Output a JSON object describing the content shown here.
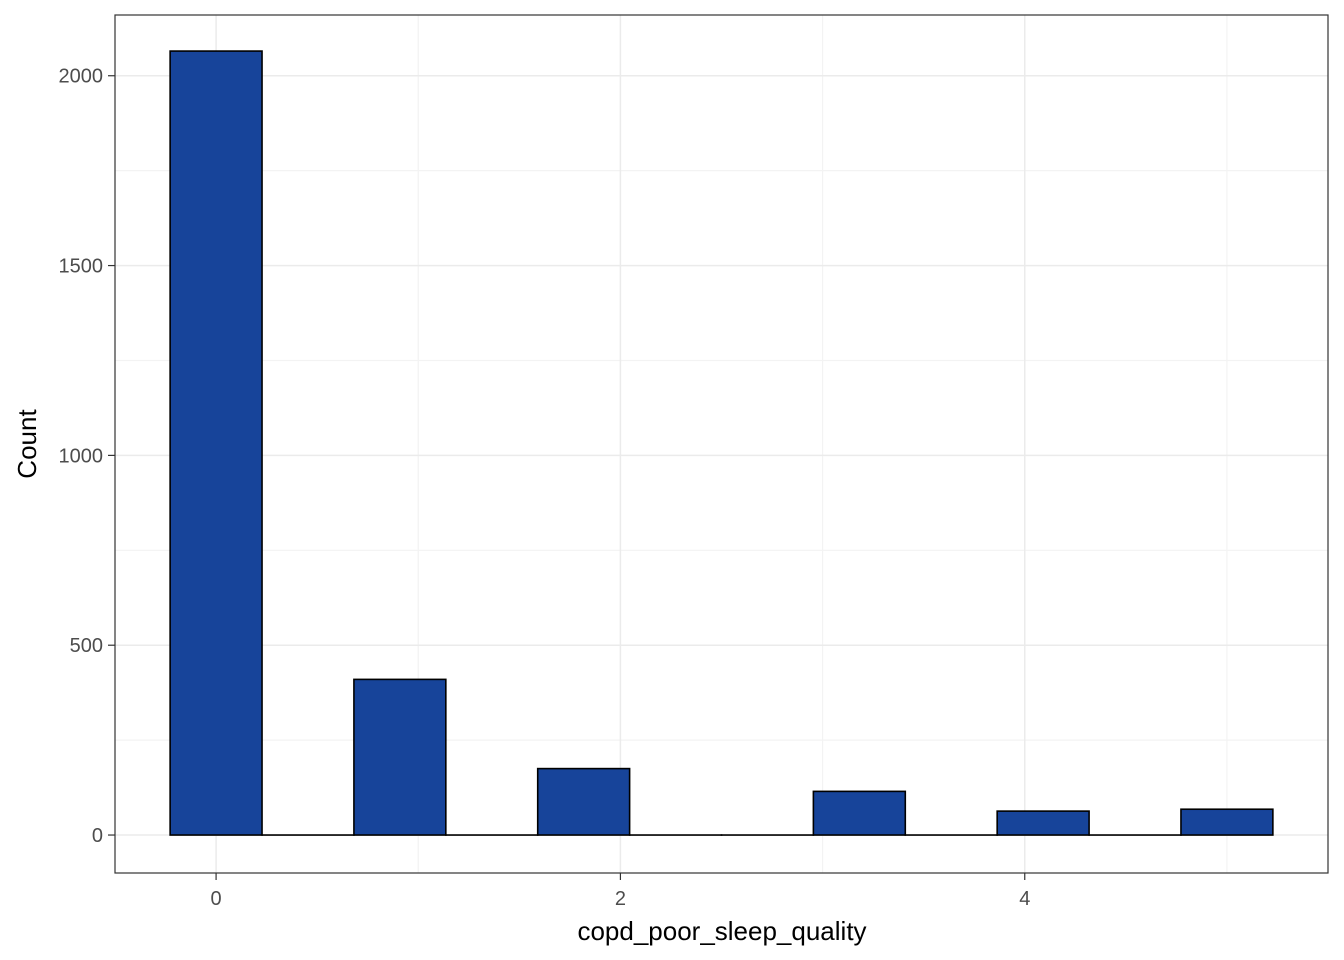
{
  "chart_data": {
    "type": "bar",
    "subtype": "histogram",
    "title": "",
    "xlabel": "copd_poor_sleep_quality",
    "ylabel": "Count",
    "xlim": [
      -0.5,
      5.5
    ],
    "ylim": [
      -100,
      2160
    ],
    "x_ticks": [
      0,
      2,
      4
    ],
    "x_tick_labels": [
      "0",
      "2",
      "4"
    ],
    "y_ticks": [
      0,
      500,
      1000,
      1500,
      2000
    ],
    "y_tick_labels": [
      "0",
      "500",
      "1000",
      "1500",
      "2000"
    ],
    "grid": true,
    "legend": "none",
    "bin_width": 0.4545,
    "bins": [
      {
        "x_start": -0.2273,
        "x_end": 0.2273,
        "count": 2065
      },
      {
        "x_start": 0.2273,
        "x_end": 0.6818,
        "count": 0
      },
      {
        "x_start": 0.6818,
        "x_end": 1.1364,
        "count": 410
      },
      {
        "x_start": 1.1364,
        "x_end": 1.5909,
        "count": 0
      },
      {
        "x_start": 1.5909,
        "x_end": 2.0455,
        "count": 175
      },
      {
        "x_start": 2.0455,
        "x_end": 2.5,
        "count": 0
      },
      {
        "x_start": 2.5,
        "x_end": 2.9545,
        "count": 0
      },
      {
        "x_start": 2.9545,
        "x_end": 3.4091,
        "count": 115
      },
      {
        "x_start": 3.4091,
        "x_end": 3.8636,
        "count": 0
      },
      {
        "x_start": 3.8636,
        "x_end": 4.3182,
        "count": 63
      },
      {
        "x_start": 4.3182,
        "x_end": 4.7727,
        "count": 0
      },
      {
        "x_start": 4.7727,
        "x_end": 5.2273,
        "count": 68
      }
    ],
    "colors": {
      "bar_fill": "#17449A",
      "bar_stroke": "#000000",
      "grid_major": "#EBEBEB",
      "grid_minor": "#F3F3F3",
      "panel_border": "#333333"
    }
  }
}
